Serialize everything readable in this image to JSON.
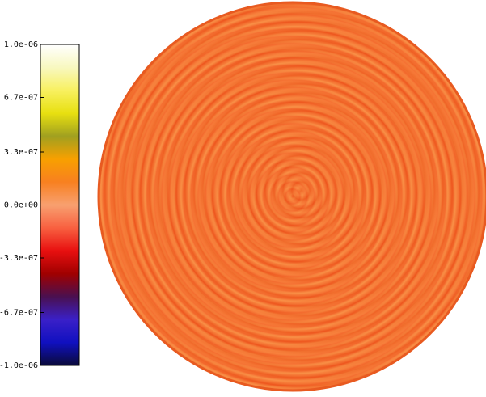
{
  "chart_data": {
    "type": "colormap",
    "colorbar": {
      "lim": [
        -1e-06,
        1e-06
      ],
      "ticks": [
        {
          "value": 1e-06,
          "label": "1.0e-06"
        },
        {
          "value": 6.7e-07,
          "label": "6.7e-07"
        },
        {
          "value": 3.3e-07,
          "label": "3.3e-07"
        },
        {
          "value": 0,
          "label": "0.0e+00"
        },
        {
          "value": -3.3e-07,
          "label": "-3.3e-07"
        },
        {
          "value": -6.7e-07,
          "label": "-6.7e-07"
        },
        {
          "value": -1e-06,
          "label": "-1.0e-06"
        }
      ],
      "colors": [
        "#0a0a3a",
        "#1010c0",
        "#3a20c8",
        "#4a1050",
        "#a00000",
        "#e81010",
        "#f86040",
        "#f8a070",
        "#f88020",
        "#f8a000",
        "#a0a020",
        "#e8e010",
        "#f8f060",
        "#f8f8c0",
        "#ffffff"
      ]
    }
  }
}
